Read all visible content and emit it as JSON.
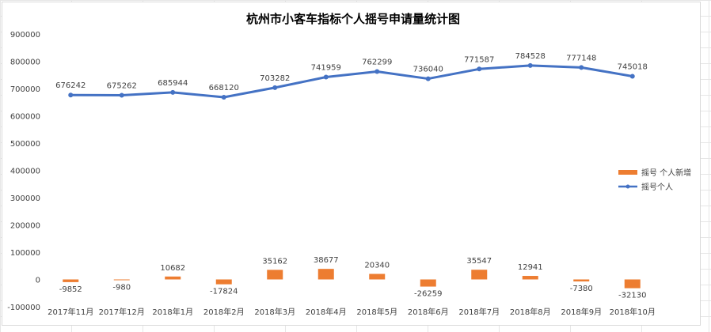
{
  "chart_data": {
    "type": "bar+line",
    "title": "杭州市小客车指标个人摇号申请量统计图",
    "categories": [
      "2017年11月",
      "2017年12月",
      "2018年1月",
      "2018年2月",
      "2018年3月",
      "2018年4月",
      "2018年5月",
      "2018年6月",
      "2018年7月",
      "2018年8月",
      "2018年9月",
      "2018年10月"
    ],
    "series": [
      {
        "name": "摇号 个人新增",
        "type": "bar",
        "color": "#ED7D31",
        "values": [
          -9852,
          -980,
          10682,
          -17824,
          35162,
          38677,
          20340,
          -26259,
          35547,
          12941,
          -7380,
          -32130
        ],
        "labels": [
          "-9852",
          "-980",
          "10682",
          "-17824",
          "35162",
          "38677",
          "20340",
          "-26259",
          "35547",
          "12941",
          "-7380",
          "-32130"
        ]
      },
      {
        "name": "摇号个人",
        "type": "line",
        "color": "#4472C4",
        "values": [
          676242,
          675262,
          685944,
          668120,
          703282,
          741959,
          762299,
          736040,
          771587,
          784528,
          777148,
          745018
        ],
        "labels": [
          "676242",
          "675262",
          "685944",
          "668120",
          "703282",
          "741959",
          "762299",
          "736040",
          "771587",
          "784528",
          "777148",
          "745018"
        ]
      }
    ],
    "yticks": [
      "900000",
      "800000",
      "700000",
      "600000",
      "500000",
      "400000",
      "300000",
      "200000",
      "100000",
      "0",
      "-100000"
    ],
    "ylim": [
      -100000,
      900000
    ],
    "grid": false,
    "legend_position": "right"
  }
}
